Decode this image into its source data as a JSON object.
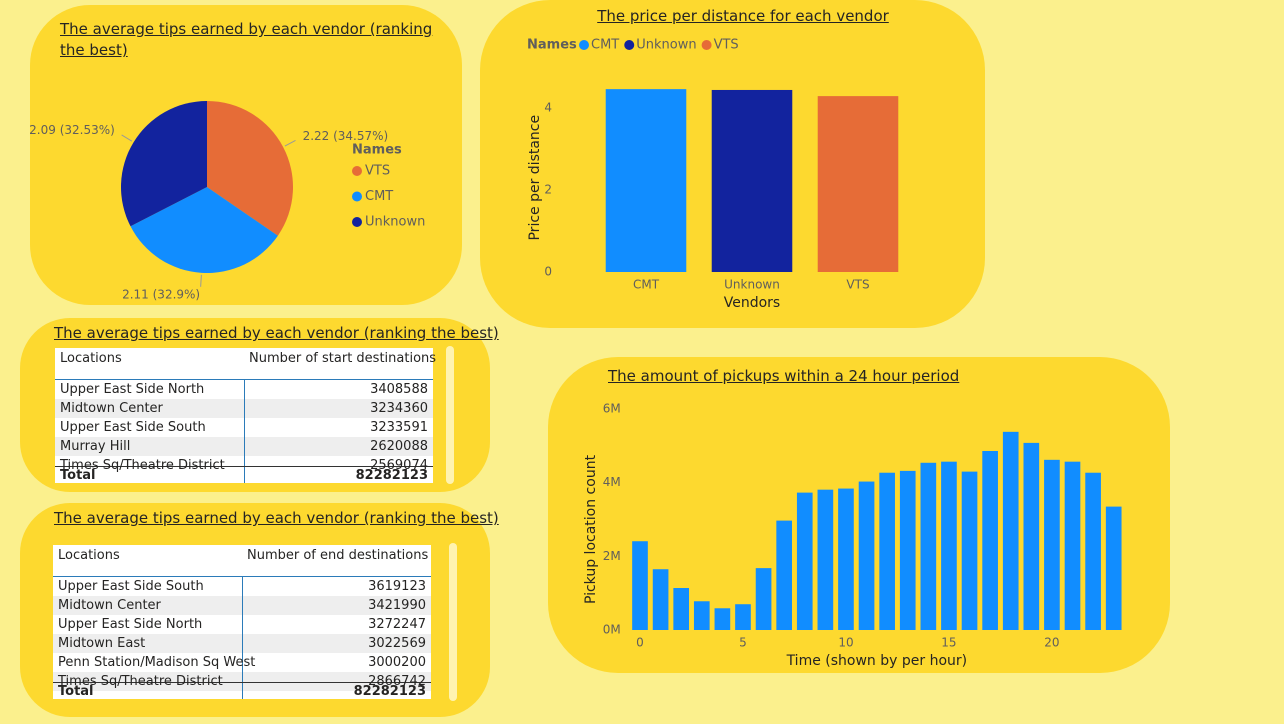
{
  "chart_data": [
    {
      "type": "pie",
      "title": "The average tips earned by each vendor (ranking the best)",
      "legend_title": "Names",
      "categories": [
        "VTS",
        "CMT",
        "Unknown"
      ],
      "values": [
        2.22,
        2.11,
        2.09
      ],
      "value_labels": [
        "2.22 (34.57%)",
        "2.11 (32.9%)",
        "2.09 (32.53%)"
      ],
      "colors": [
        "#e66c37",
        "#118dff",
        "#12239e"
      ]
    },
    {
      "type": "bar",
      "title": "The price per distance for each vendor",
      "legend_title": "Names",
      "x_label": "Vendors",
      "y_label": "Price per distance",
      "categories": [
        "CMT",
        "Unknown",
        "VTS"
      ],
      "values": [
        4.46,
        4.44,
        4.29
      ],
      "colors": [
        "#118dff",
        "#12239e",
        "#e66c37"
      ],
      "ylim": [
        0,
        4.6
      ],
      "yticks": [
        0,
        2,
        4
      ]
    },
    {
      "type": "histbar",
      "title": "The amount of pickups within a 24 hour period",
      "x_label": "Time (shown by per hour)",
      "y_label": "Pickup location count",
      "color": "#118dff",
      "x": [
        0,
        1,
        2,
        3,
        4,
        5,
        6,
        7,
        8,
        9,
        10,
        11,
        12,
        13,
        14,
        15,
        16,
        17,
        18,
        19,
        20,
        21,
        22,
        23
      ],
      "values": [
        2410000,
        1650000,
        1140000,
        780000,
        590000,
        700000,
        1680000,
        2970000,
        3730000,
        3810000,
        3840000,
        4030000,
        4270000,
        4320000,
        4540000,
        4570000,
        4300000,
        4860000,
        5380000,
        5080000,
        4620000,
        4570000,
        4270000,
        3350000
      ],
      "xlim": [
        -0.5,
        23.5
      ],
      "xticks": [
        0,
        5,
        10,
        15,
        20
      ],
      "ylim": [
        0,
        6000000
      ],
      "yticks": [
        {
          "value": 0,
          "label": "0M"
        },
        {
          "value": 2000000,
          "label": "2M"
        },
        {
          "value": 4000000,
          "label": "4M"
        },
        {
          "value": 6000000,
          "label": "6M"
        }
      ]
    }
  ],
  "tables": [
    {
      "title": "The average tips earned by each vendor (ranking the best)",
      "columns": [
        "Locations",
        "Number of start destinations"
      ],
      "rows": [
        [
          "Upper East Side North",
          3408588
        ],
        [
          "Midtown Center",
          3234360
        ],
        [
          "Upper East Side South",
          3233591
        ],
        [
          "Murray Hill",
          2620088
        ],
        [
          "Times Sq/Theatre District",
          2569074
        ]
      ],
      "total": [
        "Total",
        82282123
      ]
    },
    {
      "title": "The average tips earned by each vendor (ranking the best)",
      "columns": [
        "Locations",
        "Number of end destinations"
      ],
      "rows": [
        [
          "Upper East Side South",
          3619123
        ],
        [
          "Midtown Center",
          3421990
        ],
        [
          "Upper East Side North",
          3272247
        ],
        [
          "Midtown East",
          3022569
        ],
        [
          "Penn Station/Madison Sq West",
          3000200
        ],
        [
          "Times Sq/Theatre District",
          2866742
        ]
      ],
      "total": [
        "Total",
        82282123
      ]
    }
  ]
}
